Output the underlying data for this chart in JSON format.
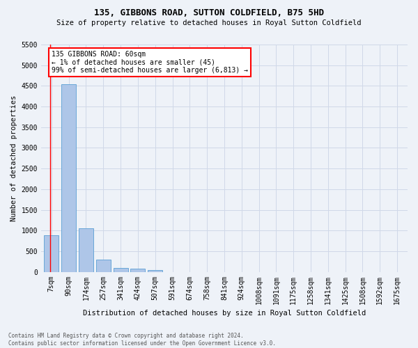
{
  "title": "135, GIBBONS ROAD, SUTTON COLDFIELD, B75 5HD",
  "subtitle": "Size of property relative to detached houses in Royal Sutton Coldfield",
  "xlabel": "Distribution of detached houses by size in Royal Sutton Coldfield",
  "ylabel": "Number of detached properties",
  "footnote": "Contains HM Land Registry data © Crown copyright and database right 2024.\nContains public sector information licensed under the Open Government Licence v3.0.",
  "bar_labels": [
    "7sqm",
    "90sqm",
    "174sqm",
    "257sqm",
    "341sqm",
    "424sqm",
    "507sqm",
    "591sqm",
    "674sqm",
    "758sqm",
    "841sqm",
    "924sqm",
    "1008sqm",
    "1091sqm",
    "1175sqm",
    "1258sqm",
    "1341sqm",
    "1425sqm",
    "1508sqm",
    "1592sqm",
    "1675sqm"
  ],
  "bar_values": [
    880,
    4540,
    1060,
    290,
    95,
    75,
    50,
    0,
    0,
    0,
    0,
    0,
    0,
    0,
    0,
    0,
    0,
    0,
    0,
    0,
    0
  ],
  "bar_color": "#aec6e8",
  "bar_edge_color": "#5a9fd4",
  "annotation_box_text": "135 GIBBONS ROAD: 60sqm\n← 1% of detached houses are smaller (45)\n99% of semi-detached houses are larger (6,813) →",
  "annotation_box_color": "white",
  "annotation_box_edge_color": "red",
  "vline_color": "red",
  "ylim": [
    0,
    5500
  ],
  "yticks": [
    0,
    500,
    1000,
    1500,
    2000,
    2500,
    3000,
    3500,
    4000,
    4500,
    5000,
    5500
  ],
  "grid_color": "#d0d8e8",
  "bg_color": "#eef2f8",
  "title_fontsize": 9,
  "subtitle_fontsize": 7.5,
  "ylabel_fontsize": 7.5,
  "xlabel_fontsize": 7.5,
  "tick_fontsize": 7,
  "annot_fontsize": 7,
  "footnote_fontsize": 5.5
}
